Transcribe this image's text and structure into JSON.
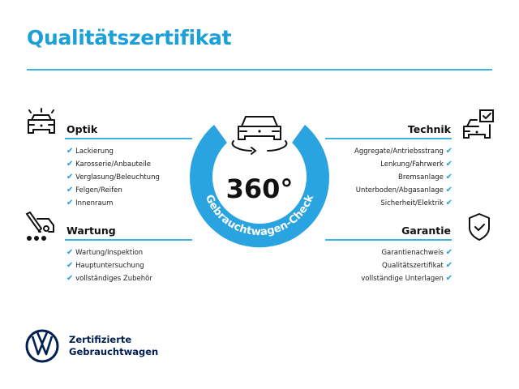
{
  "title": "Qualitätszertifikat",
  "colors": {
    "accent": "#1ba0d8",
    "ring": "#2aa4e0",
    "brand_navy": "#001e50"
  },
  "center": {
    "degrees": "360°",
    "ring_text": "Gebrauchtwagen-Check",
    "icon": "car-rotate-icon"
  },
  "sections": {
    "optik": {
      "title": "Optik",
      "icon": "car-lights-icon",
      "items": [
        "Lackierung",
        "Karosserie/Anbauteile",
        "Verglasung/Beleuchtung",
        "Felgen/Reifen",
        "Innenraum"
      ]
    },
    "wartung": {
      "title": "Wartung",
      "icon": "service-tools-icon",
      "items": [
        "Wartung/Inspektion",
        "Hauptuntersuchung",
        "vollständiges Zubehör"
      ]
    },
    "technik": {
      "title": "Technik",
      "icon": "car-checkbox-icon",
      "items": [
        "Aggregate/Antriebsstrang",
        "Lenkung/Fahrwerk",
        "Bremsanlage",
        "Unterboden/Abgasanlage",
        "Sicherheit/Elektrik"
      ]
    },
    "garantie": {
      "title": "Garantie",
      "icon": "shield-check-icon",
      "items": [
        "Garantienachweis",
        "Qualitätszertifikat",
        "vollständige Unterlagen"
      ]
    }
  },
  "check_mark": "✔",
  "brand": {
    "line1": "Zertifizierte",
    "line2": "Gebrauchtwagen",
    "logo": "vw-logo"
  }
}
